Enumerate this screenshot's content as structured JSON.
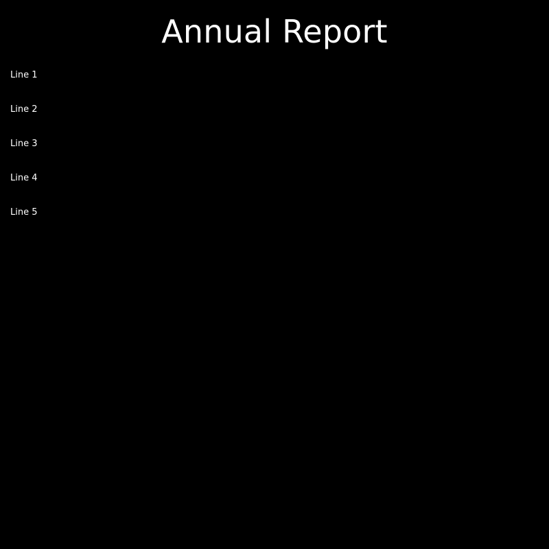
{
  "document": {
    "title": "Annual Report",
    "lines": [
      "Line 1",
      "Line 2",
      "Line 3",
      "Line 4",
      "Line 5"
    ]
  },
  "colors": {
    "background": "#000000",
    "text": "#ffffff"
  }
}
